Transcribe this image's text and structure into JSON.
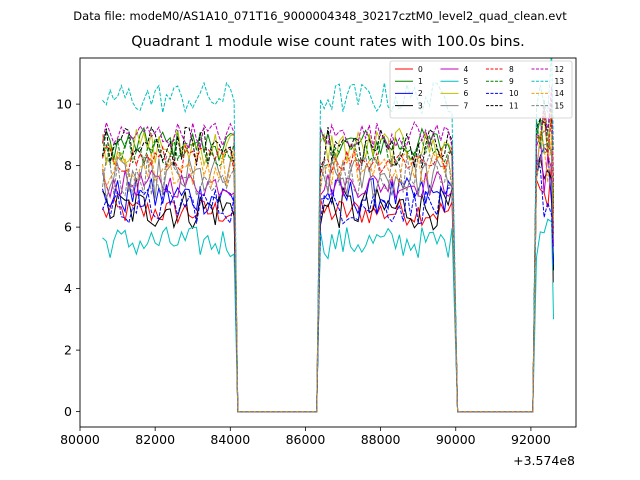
{
  "header": {
    "suptitle": "Data file: modeM0/AS1A10_071T16_9000004348_30217cztM0_level2_quad_clean.evt"
  },
  "chart_data": {
    "type": "line",
    "title": "Quadrant 1 module wise count rates with 100.0s bins.",
    "xlabel": "",
    "ylabel": "",
    "offset_label": "+3.574e8",
    "xlim": [
      80000,
      93200
    ],
    "ylim": [
      -0.5,
      11.5
    ],
    "xticks": [
      80000,
      82000,
      84000,
      86000,
      88000,
      90000,
      92000
    ],
    "yticks": [
      0,
      2,
      4,
      6,
      8,
      10
    ],
    "segments": [
      {
        "start": 80600,
        "end": 84100
      },
      {
        "start": 86400,
        "end": 89950
      },
      {
        "start": 92150,
        "end": 92550
      }
    ],
    "zero_ranges": [
      [
        84200,
        86300
      ],
      [
        90050,
        92050
      ]
    ],
    "legend": {
      "position": "top-right",
      "columns": 4
    },
    "series": [
      {
        "name": "0",
        "color": "#ff0000",
        "dash": "solid",
        "mean": 6.5
      },
      {
        "name": "1",
        "color": "#008000",
        "dash": "solid",
        "mean": 8.7
      },
      {
        "name": "2",
        "color": "#0000ff",
        "dash": "solid",
        "mean": 7.0
      },
      {
        "name": "3",
        "color": "#000000",
        "dash": "solid",
        "mean": 6.6
      },
      {
        "name": "4",
        "color": "#bf00bf",
        "dash": "solid",
        "mean": 7.4
      },
      {
        "name": "5",
        "color": "#00bfbf",
        "dash": "solid",
        "mean": 5.5
      },
      {
        "name": "6",
        "color": "#bfbf00",
        "dash": "solid",
        "mean": 8.6
      },
      {
        "name": "7",
        "color": "#808080",
        "dash": "solid",
        "mean": 7.6
      },
      {
        "name": "8",
        "color": "#ff0000",
        "dash": "dashed",
        "mean": 8.2
      },
      {
        "name": "9",
        "color": "#008000",
        "dash": "dashed",
        "mean": 8.5
      },
      {
        "name": "10",
        "color": "#0000ff",
        "dash": "dashed",
        "mean": 6.7
      },
      {
        "name": "11",
        "color": "#000000",
        "dash": "dashed",
        "mean": 8.6
      },
      {
        "name": "12",
        "color": "#bf00bf",
        "dash": "dashed",
        "mean": 9.0
      },
      {
        "name": "13",
        "color": "#00bfbf",
        "dash": "dashed",
        "mean": 10.2
      },
      {
        "name": "14",
        "color": "#ff9900",
        "dash": "dashed",
        "mean": 7.9
      },
      {
        "name": "15",
        "color": "#808080",
        "dash": "dashed",
        "mean": 7.7
      }
    ]
  }
}
